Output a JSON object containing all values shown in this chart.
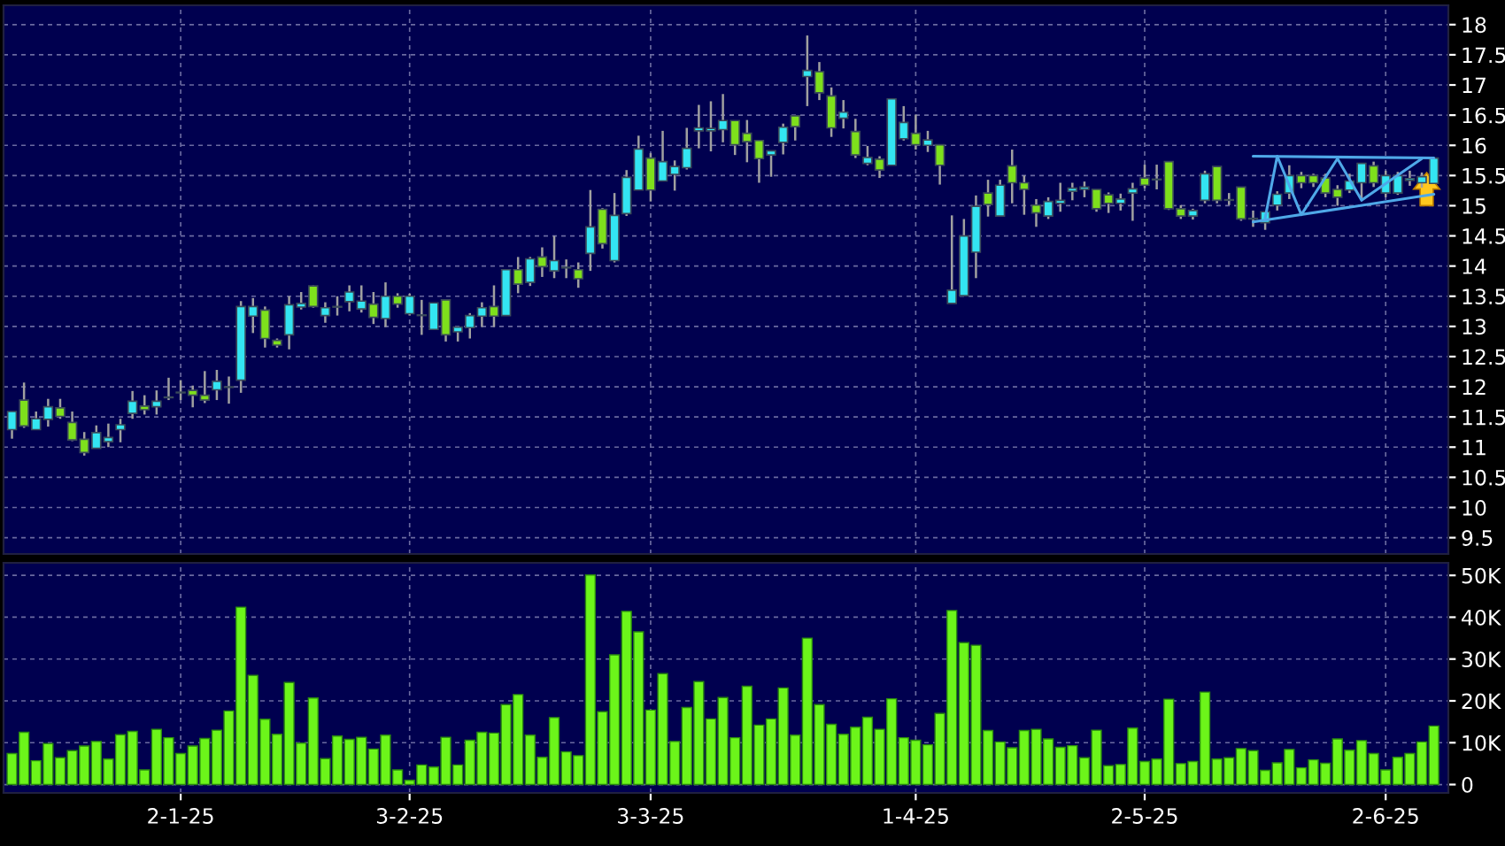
{
  "chart_data": [
    {
      "type": "candlestick",
      "grid": true,
      "tick_labels": "y",
      "ylim": [
        9.23,
        18.32
      ],
      "yticks": [
        9.5,
        10,
        10.5,
        11,
        11.5,
        12,
        12.5,
        13,
        13.5,
        14,
        14.5,
        15,
        15.5,
        16,
        16.5,
        17,
        17.5,
        18
      ],
      "categories": [
        null,
        null,
        null,
        null,
        null,
        null,
        null,
        null,
        null,
        null,
        null,
        null,
        null,
        null,
        null,
        null,
        null,
        null,
        null,
        null,
        null,
        null,
        null,
        null,
        null,
        null,
        null,
        null,
        null,
        null,
        null,
        null,
        null,
        null,
        null,
        null,
        null,
        null,
        null,
        null,
        null,
        null,
        null,
        null,
        null,
        null,
        null,
        null,
        null,
        null,
        null,
        null,
        null,
        null,
        null,
        null,
        null,
        null,
        null,
        null,
        null,
        null,
        null,
        null,
        null,
        null,
        null,
        null,
        null,
        null,
        null,
        null,
        null,
        null,
        null,
        null,
        null,
        null,
        null,
        null,
        null,
        null,
        null,
        null,
        null,
        null,
        null,
        null,
        null,
        null,
        null,
        null,
        null,
        null,
        null,
        null,
        null,
        null,
        null,
        null,
        null,
        null,
        null,
        null,
        null,
        null,
        null,
        null,
        null,
        null,
        null,
        null,
        null,
        null,
        null,
        null,
        null,
        null,
        null
      ],
      "series": [
        {
          "type": "candlestick",
          "ohlc": [
            [
              11.29,
              11.59,
              11.14,
              11.59
            ],
            [
              11.78,
              12.07,
              11.32,
              11.35
            ],
            [
              11.29,
              11.59,
              11.29,
              11.47
            ],
            [
              11.46,
              11.8,
              11.34,
              11.67
            ],
            [
              11.65,
              11.8,
              11.47,
              11.51
            ],
            [
              11.41,
              11.59,
              11.1,
              11.12
            ],
            [
              11.13,
              11.25,
              10.86,
              10.91
            ],
            [
              10.98,
              11.36,
              10.98,
              11.24
            ],
            [
              11.09,
              11.39,
              11.0,
              11.16
            ],
            [
              11.29,
              11.47,
              11.08,
              11.37
            ],
            [
              11.56,
              11.93,
              11.47,
              11.76
            ],
            [
              11.68,
              11.86,
              11.54,
              11.62
            ],
            [
              11.67,
              11.94,
              11.54,
              11.76
            ],
            [
              11.82,
              12.15,
              11.78,
              11.83
            ],
            [
              11.91,
              12.11,
              11.78,
              11.9
            ],
            [
              11.94,
              12.02,
              11.66,
              11.86
            ],
            [
              11.86,
              12.26,
              11.73,
              11.78
            ],
            [
              11.95,
              12.28,
              11.78,
              12.09
            ],
            [
              11.99,
              12.17,
              11.72,
              12.0
            ],
            [
              12.11,
              13.42,
              11.9,
              13.33
            ],
            [
              13.17,
              13.47,
              12.89,
              13.33
            ],
            [
              13.27,
              13.33,
              12.65,
              12.8
            ],
            [
              12.77,
              12.8,
              12.65,
              12.69
            ],
            [
              12.86,
              13.5,
              12.62,
              13.36
            ],
            [
              13.32,
              13.57,
              13.28,
              13.38
            ],
            [
              13.67,
              13.68,
              13.31,
              13.33
            ],
            [
              13.18,
              13.4,
              13.06,
              13.31
            ],
            [
              13.32,
              13.5,
              13.18,
              13.33
            ],
            [
              13.41,
              13.68,
              13.25,
              13.57
            ],
            [
              13.29,
              13.68,
              13.23,
              13.42
            ],
            [
              13.37,
              13.57,
              13.04,
              13.15
            ],
            [
              13.13,
              13.73,
              12.99,
              13.5
            ],
            [
              13.5,
              13.55,
              13.31,
              13.37
            ],
            [
              13.21,
              13.54,
              13.18,
              13.5
            ],
            [
              13.18,
              13.44,
              12.86,
              13.19
            ],
            [
              12.95,
              13.39,
              12.95,
              13.39
            ],
            [
              13.44,
              13.44,
              12.75,
              12.86
            ],
            [
              12.91,
              12.99,
              12.75,
              12.99
            ],
            [
              12.98,
              13.22,
              12.8,
              13.18
            ],
            [
              13.17,
              13.4,
              12.99,
              13.31
            ],
            [
              13.33,
              13.68,
              12.99,
              13.17
            ],
            [
              13.18,
              13.94,
              13.18,
              13.94
            ],
            [
              13.94,
              14.15,
              13.55,
              13.7
            ],
            [
              13.73,
              14.15,
              13.67,
              14.12
            ],
            [
              14.15,
              14.31,
              13.82,
              13.99
            ],
            [
              13.92,
              14.5,
              13.8,
              14.09
            ],
            [
              13.97,
              14.11,
              13.8,
              13.98
            ],
            [
              13.94,
              14.06,
              13.64,
              13.79
            ],
            [
              14.21,
              15.26,
              13.92,
              14.65
            ],
            [
              14.94,
              14.96,
              14.29,
              14.37
            ],
            [
              14.09,
              15.21,
              14.06,
              14.84
            ],
            [
              14.87,
              15.59,
              14.83,
              15.47
            ],
            [
              15.26,
              16.16,
              15.26,
              15.94
            ],
            [
              15.79,
              15.87,
              15.07,
              15.26
            ],
            [
              15.41,
              16.24,
              15.41,
              15.73
            ],
            [
              15.52,
              15.75,
              15.25,
              15.65
            ],
            [
              15.63,
              16.29,
              15.6,
              15.95
            ],
            [
              16.24,
              16.67,
              15.95,
              16.29
            ],
            [
              16.24,
              16.73,
              15.9,
              16.28
            ],
            [
              16.26,
              16.85,
              16.05,
              16.41
            ],
            [
              16.41,
              16.41,
              15.84,
              16.01
            ],
            [
              16.2,
              16.42,
              15.72,
              16.06
            ],
            [
              16.08,
              16.08,
              15.38,
              15.78
            ],
            [
              15.84,
              15.91,
              15.48,
              15.91
            ],
            [
              16.05,
              16.36,
              15.85,
              16.3
            ],
            [
              16.49,
              16.49,
              16.08,
              16.31
            ],
            [
              17.14,
              17.82,
              16.65,
              17.24
            ],
            [
              17.22,
              17.38,
              16.75,
              16.87
            ],
            [
              16.82,
              16.96,
              16.14,
              16.29
            ],
            [
              16.45,
              16.75,
              16.28,
              16.55
            ],
            [
              16.23,
              16.44,
              15.79,
              15.84
            ],
            [
              15.7,
              15.99,
              15.67,
              15.8
            ],
            [
              15.77,
              15.82,
              15.46,
              15.59
            ],
            [
              15.67,
              16.77,
              15.67,
              16.77
            ],
            [
              16.11,
              16.65,
              16.08,
              16.38
            ],
            [
              16.2,
              16.51,
              15.93,
              16.01
            ],
            [
              16.0,
              16.24,
              15.89,
              16.09
            ],
            [
              16.01,
              16.01,
              15.35,
              15.67
            ],
            [
              13.38,
              14.84,
              13.38,
              13.6
            ],
            [
              13.51,
              14.78,
              13.51,
              14.5
            ],
            [
              14.23,
              15.17,
              13.8,
              14.99
            ],
            [
              15.21,
              15.43,
              14.82,
              15.02
            ],
            [
              14.83,
              15.43,
              14.83,
              15.34
            ],
            [
              15.66,
              15.93,
              15.04,
              15.38
            ],
            [
              15.38,
              15.5,
              14.85,
              15.27
            ],
            [
              15.01,
              15.11,
              14.65,
              14.88
            ],
            [
              14.83,
              15.14,
              14.78,
              15.07
            ],
            [
              15.04,
              15.38,
              14.9,
              15.09
            ],
            [
              15.24,
              15.38,
              15.09,
              15.29
            ],
            [
              15.27,
              15.4,
              15.14,
              15.31
            ],
            [
              15.27,
              15.27,
              14.9,
              14.95
            ],
            [
              15.18,
              15.22,
              14.88,
              15.04
            ],
            [
              15.04,
              15.2,
              14.92,
              15.11
            ],
            [
              15.21,
              15.38,
              14.75,
              15.28
            ],
            [
              15.46,
              15.68,
              15.29,
              15.34
            ],
            [
              15.43,
              15.68,
              15.27,
              15.44
            ],
            [
              15.73,
              15.73,
              14.93,
              14.95
            ],
            [
              14.95,
              15.01,
              14.78,
              14.83
            ],
            [
              14.83,
              14.95,
              14.77,
              14.92
            ],
            [
              15.09,
              15.58,
              15.04,
              15.53
            ],
            [
              15.65,
              15.65,
              15.04,
              15.09
            ],
            [
              15.09,
              15.21,
              15.01,
              15.1
            ],
            [
              15.31,
              15.31,
              14.75,
              14.78
            ],
            [
              14.79,
              14.92,
              14.65,
              14.78
            ],
            [
              14.72,
              14.9,
              14.6,
              14.9
            ],
            [
              15.01,
              15.24,
              14.92,
              15.19
            ],
            [
              15.21,
              15.67,
              15.11,
              15.5
            ],
            [
              15.5,
              15.56,
              15.29,
              15.38
            ],
            [
              15.5,
              15.53,
              15.31,
              15.38
            ],
            [
              15.46,
              15.53,
              15.14,
              15.21
            ],
            [
              15.27,
              15.34,
              15.0,
              15.14
            ],
            [
              15.26,
              15.53,
              15.21,
              15.41
            ],
            [
              15.38,
              15.7,
              15.09,
              15.7
            ],
            [
              15.66,
              15.73,
              15.31,
              15.38
            ],
            [
              15.21,
              15.58,
              15.14,
              15.5
            ],
            [
              15.21,
              15.56,
              15.18,
              15.5
            ],
            [
              15.42,
              15.58,
              15.33,
              15.45
            ],
            [
              15.38,
              15.55,
              15.3,
              15.48
            ],
            [
              15.37,
              15.79,
              15.37,
              15.79
            ]
          ],
          "colors": [
            "#33e5f2",
            "#7ee01c",
            "#33e5f2",
            "#33e5f2",
            "#7ee01c",
            "#7ee01c",
            "#7ee01c",
            "#33e5f2",
            "#33e5f2",
            "#33e5f2",
            "#33e5f2",
            "#7ee01c",
            "#33e5f2",
            "#33e5f2",
            "#7ee01c",
            "#7ee01c",
            "#7ee01c",
            "#33e5f2",
            "#33e5f2",
            "#33e5f2",
            "#33e5f2",
            "#7ee01c",
            "#7ee01c",
            "#33e5f2",
            "#33e5f2",
            "#7ee01c",
            "#33e5f2",
            "#33e5f2",
            "#33e5f2",
            "#33e5f2",
            "#7ee01c",
            "#33e5f2",
            "#7ee01c",
            "#33e5f2",
            "#33e5f2",
            "#33e5f2",
            "#7ee01c",
            "#33e5f2",
            "#33e5f2",
            "#33e5f2",
            "#7ee01c",
            "#33e5f2",
            "#7ee01c",
            "#33e5f2",
            "#7ee01c",
            "#33e5f2",
            "#33e5f2",
            "#7ee01c",
            "#33e5f2",
            "#7ee01c",
            "#33e5f2",
            "#33e5f2",
            "#33e5f2",
            "#7ee01c",
            "#33e5f2",
            "#33e5f2",
            "#33e5f2",
            "#33e5f2",
            "#33e5f2",
            "#33e5f2",
            "#7ee01c",
            "#7ee01c",
            "#7ee01c",
            "#33e5f2",
            "#33e5f2",
            "#7ee01c",
            "#33e5f2",
            "#7ee01c",
            "#7ee01c",
            "#33e5f2",
            "#7ee01c",
            "#33e5f2",
            "#7ee01c",
            "#33e5f2",
            "#33e5f2",
            "#7ee01c",
            "#33e5f2",
            "#7ee01c",
            "#33e5f2",
            "#33e5f2",
            "#33e5f2",
            "#7ee01c",
            "#33e5f2",
            "#7ee01c",
            "#7ee01c",
            "#7ee01c",
            "#33e5f2",
            "#33e5f2",
            "#33e5f2",
            "#33e5f2",
            "#7ee01c",
            "#7ee01c",
            "#33e5f2",
            "#33e5f2",
            "#7ee01c",
            "#33e5f2",
            "#7ee01c",
            "#7ee01c",
            "#33e5f2",
            "#33e5f2",
            "#7ee01c",
            "#33e5f2",
            "#7ee01c",
            "#7ee01c",
            "#33e5f2",
            "#33e5f2",
            "#33e5f2",
            "#7ee01c",
            "#7ee01c",
            "#7ee01c",
            "#7ee01c",
            "#33e5f2",
            "#33e5f2",
            "#7ee01c",
            "#33e5f2",
            "#33e5f2",
            "#33e5f2",
            "#33e5f2",
            "#33e5f2"
          ]
        },
        {
          "type": "line",
          "color": "#4fa8e8",
          "values": [
            null,
            null,
            null,
            null,
            null,
            null,
            null,
            null,
            null,
            null,
            null,
            null,
            null,
            null,
            null,
            null,
            null,
            null,
            null,
            null,
            null,
            null,
            null,
            null,
            null,
            null,
            null,
            null,
            null,
            null,
            null,
            null,
            null,
            null,
            null,
            null,
            null,
            null,
            null,
            null,
            null,
            null,
            null,
            null,
            null,
            null,
            null,
            null,
            null,
            null,
            null,
            null,
            null,
            null,
            null,
            null,
            null,
            null,
            null,
            null,
            null,
            null,
            null,
            null,
            null,
            null,
            null,
            null,
            null,
            null,
            null,
            null,
            null,
            null,
            null,
            null,
            null,
            null,
            null,
            null,
            null,
            null,
            null,
            null,
            null,
            null,
            null,
            null,
            null,
            null,
            null,
            null,
            null,
            null,
            null,
            null,
            null,
            null,
            null,
            null,
            null,
            null,
            null,
            15.82,
            null,
            null,
            null,
            null,
            null,
            null,
            null,
            null,
            null,
            null,
            null,
            null,
            null,
            null,
            15.79
          ]
        },
        {
          "type": "line",
          "color": "#4fa8e8",
          "values": [
            null,
            null,
            null,
            null,
            null,
            null,
            null,
            null,
            null,
            null,
            null,
            null,
            null,
            null,
            null,
            null,
            null,
            null,
            null,
            null,
            null,
            null,
            null,
            null,
            null,
            null,
            null,
            null,
            null,
            null,
            null,
            null,
            null,
            null,
            null,
            null,
            null,
            null,
            null,
            null,
            null,
            null,
            null,
            null,
            null,
            null,
            null,
            null,
            null,
            null,
            null,
            null,
            null,
            null,
            null,
            null,
            null,
            null,
            null,
            null,
            null,
            null,
            null,
            null,
            null,
            null,
            null,
            null,
            null,
            null,
            null,
            null,
            null,
            null,
            null,
            null,
            null,
            null,
            null,
            null,
            null,
            null,
            null,
            null,
            null,
            null,
            null,
            null,
            null,
            null,
            null,
            null,
            null,
            null,
            null,
            null,
            null,
            null,
            null,
            null,
            null,
            null,
            null,
            14.73,
            null,
            null,
            null,
            null,
            null,
            null,
            null,
            null,
            null,
            null,
            null,
            null,
            null,
            null,
            15.19
          ]
        },
        {
          "type": "line",
          "color": "#4fa8e8",
          "values": [
            null,
            null,
            null,
            null,
            null,
            null,
            null,
            null,
            null,
            null,
            null,
            null,
            null,
            null,
            null,
            null,
            null,
            null,
            null,
            null,
            null,
            null,
            null,
            null,
            null,
            null,
            null,
            null,
            null,
            null,
            null,
            null,
            null,
            null,
            null,
            null,
            null,
            null,
            null,
            null,
            null,
            null,
            null,
            null,
            null,
            null,
            null,
            null,
            null,
            null,
            null,
            null,
            null,
            null,
            null,
            null,
            null,
            null,
            null,
            null,
            null,
            null,
            null,
            null,
            null,
            null,
            null,
            null,
            null,
            null,
            null,
            null,
            null,
            null,
            null,
            null,
            null,
            null,
            null,
            null,
            null,
            null,
            null,
            null,
            null,
            null,
            null,
            null,
            null,
            null,
            null,
            null,
            null,
            null,
            null,
            null,
            null,
            null,
            null,
            null,
            null,
            null,
            null,
            null,
            14.8,
            15.82,
            null,
            14.85,
            null,
            null,
            15.78,
            null,
            15.09,
            null,
            null,
            null,
            null,
            15.78,
            null
          ]
        }
      ]
    },
    {
      "type": "bar",
      "grid": true,
      "color": "#6cf51a",
      "ylim": [
        -2,
        53
      ],
      "yticks": [
        0,
        {
          "value": 10,
          "label": "10K"
        },
        {
          "value": 20,
          "label": "20K"
        },
        {
          "value": 30,
          "label": "30K"
        },
        {
          "value": 40,
          "label": "40K"
        },
        {
          "value": 50,
          "label": "50K"
        }
      ],
      "categories": [
        null,
        null,
        null,
        null,
        null,
        null,
        null,
        null,
        null,
        null,
        null,
        null,
        null,
        null,
        "2-1-25",
        null,
        null,
        null,
        null,
        null,
        null,
        null,
        null,
        null,
        null,
        null,
        null,
        null,
        null,
        null,
        null,
        null,
        null,
        "3-2-25",
        null,
        null,
        null,
        null,
        null,
        null,
        null,
        null,
        null,
        null,
        null,
        null,
        null,
        null,
        null,
        null,
        null,
        null,
        null,
        "3-3-25",
        null,
        null,
        null,
        null,
        null,
        null,
        null,
        null,
        null,
        null,
        null,
        null,
        null,
        null,
        null,
        null,
        null,
        null,
        null,
        null,
        null,
        "1-4-25",
        null,
        null,
        null,
        null,
        null,
        null,
        null,
        null,
        null,
        null,
        null,
        null,
        null,
        null,
        null,
        null,
        null,
        null,
        "2-5-25",
        null,
        null,
        null,
        null,
        null,
        null,
        null,
        null,
        null,
        null,
        null,
        null,
        null,
        null,
        null,
        null,
        null,
        null,
        null,
        "2-6-25",
        null,
        null,
        null,
        null
      ],
      "values": [
        7.4,
        12.5,
        5.7,
        9.8,
        6.4,
        8.1,
        9.2,
        10.3,
        6.1,
        11.9,
        12.7,
        3.5,
        13.2,
        11.2,
        7.4,
        9.2,
        11.0,
        13.0,
        17.6,
        42.4,
        26.1,
        15.6,
        12.0,
        24.4,
        9.9,
        20.7,
        6.2,
        11.6,
        10.8,
        11.3,
        8.5,
        11.8,
        3.5,
        1.0,
        4.7,
        4.2,
        11.3,
        4.7,
        10.6,
        12.5,
        12.3,
        19.1,
        21.5,
        11.8,
        6.5,
        16.0,
        7.8,
        6.9,
        50.1,
        17.4,
        31.0,
        41.4,
        36.5,
        17.8,
        26.5,
        10.3,
        18.4,
        24.6,
        15.7,
        20.8,
        11.2,
        23.5,
        14.2,
        15.7,
        23.1,
        11.8,
        35.0,
        19.1,
        14.4,
        12.0,
        13.7,
        16.1,
        13.2,
        20.5,
        11.2,
        10.6,
        9.5,
        17.0,
        41.6,
        33.9,
        33.3,
        12.9,
        10.2,
        8.8,
        12.9,
        13.2,
        10.9,
        8.9,
        9.3,
        6.4,
        13.0,
        4.5,
        4.8,
        13.5,
        5.5,
        6.1,
        20.4,
        5.0,
        5.5,
        22.1,
        6.1,
        6.4,
        8.6,
        8.1,
        3.4,
        5.2,
        8.4,
        4.0,
        5.9,
        5.1,
        10.9,
        8.2,
        10.5,
        7.4,
        3.5,
        6.5,
        7.4,
        10.2,
        14.0
      ]
    }
  ]
}
